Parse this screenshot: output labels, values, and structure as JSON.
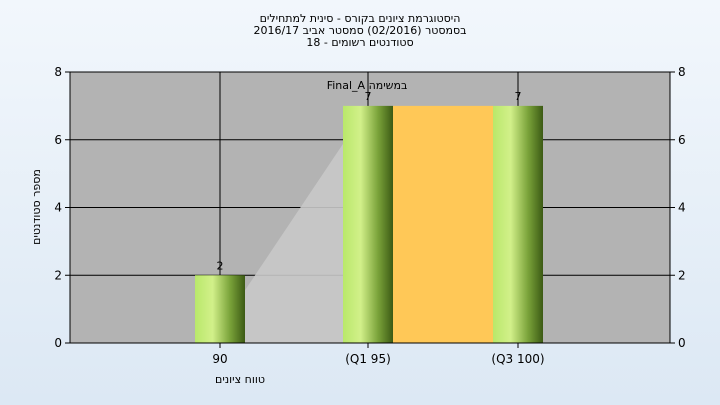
{
  "chart_data": {
    "type": "bar",
    "title_lines": [
      "היסטוגרמת ציונים בקורס - סינית למתחילים",
      "בסמסטר  (02/2016)  סמסטר אביב 2016/17",
      "סטודנטים רשומים - 18"
    ],
    "annotation": "Final_A במשימה",
    "categories": [
      "90",
      "(Q1 95)",
      "(Q3 100)"
    ],
    "values": [
      2,
      7,
      7
    ],
    "data_labels": [
      "2",
      "7",
      "7"
    ],
    "ylabel": "מספר סטודנטים",
    "xlabel": "טווח ציונים",
    "ylim": [
      0,
      8
    ],
    "yticks": [
      "0",
      "2",
      "4",
      "6",
      "8"
    ],
    "grid": true,
    "colors": {
      "bar_light": "#b9e86a",
      "bar_dark": "#3c5a14",
      "iqr_box": "#ffc857",
      "plot_bg": "#b3b3b3",
      "trend_fill": "#c8c8c8"
    }
  }
}
